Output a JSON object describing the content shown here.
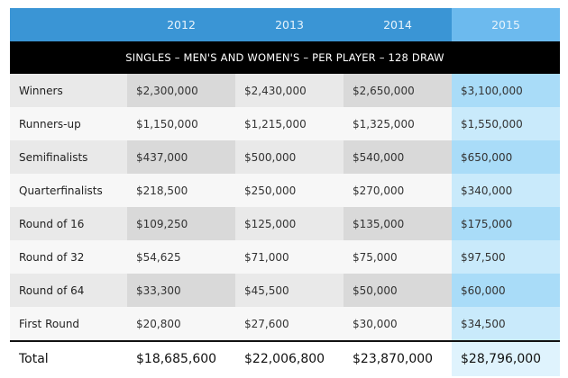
{
  "years": [
    "2012",
    "2013",
    "2014",
    "2015"
  ],
  "band_label": "SINGLES – MEN'S AND WOMEN'S – PER PLAYER – 128 DRAW",
  "rows": [
    {
      "label": "Winners",
      "values": [
        "$2,300,000",
        "$2,430,000",
        "$2,650,000",
        "$3,100,000"
      ]
    },
    {
      "label": "Runners-up",
      "values": [
        "$1,150,000",
        "$1,215,000",
        "$1,325,000",
        "$1,550,000"
      ]
    },
    {
      "label": "Semifinalists",
      "values": [
        "$437,000",
        "$500,000",
        "$540,000",
        "$650,000"
      ]
    },
    {
      "label": "Quarterfinalists",
      "values": [
        "$218,500",
        "$250,000",
        "$270,000",
        "$340,000"
      ]
    },
    {
      "label": "Round of 16",
      "values": [
        "$109,250",
        "$125,000",
        "$135,000",
        "$175,000"
      ]
    },
    {
      "label": "Round of 32",
      "values": [
        "$54,625",
        "$71,000",
        "$75,000",
        "$97,500"
      ]
    },
    {
      "label": "Round of 64",
      "values": [
        "$33,300",
        "$45,500",
        "$50,000",
        "$60,000"
      ]
    },
    {
      "label": "First Round",
      "values": [
        "$20,800",
        "$27,600",
        "$30,000",
        "$34,500"
      ]
    }
  ],
  "total": {
    "label": "Total",
    "values": [
      "$18,685,600",
      "$22,006,800",
      "$23,870,000",
      "$28,796,000"
    ]
  },
  "colors": {
    "header_blue": "#3a95d5",
    "highlight_blue": "#6cbaee",
    "band_black": "#000000"
  }
}
